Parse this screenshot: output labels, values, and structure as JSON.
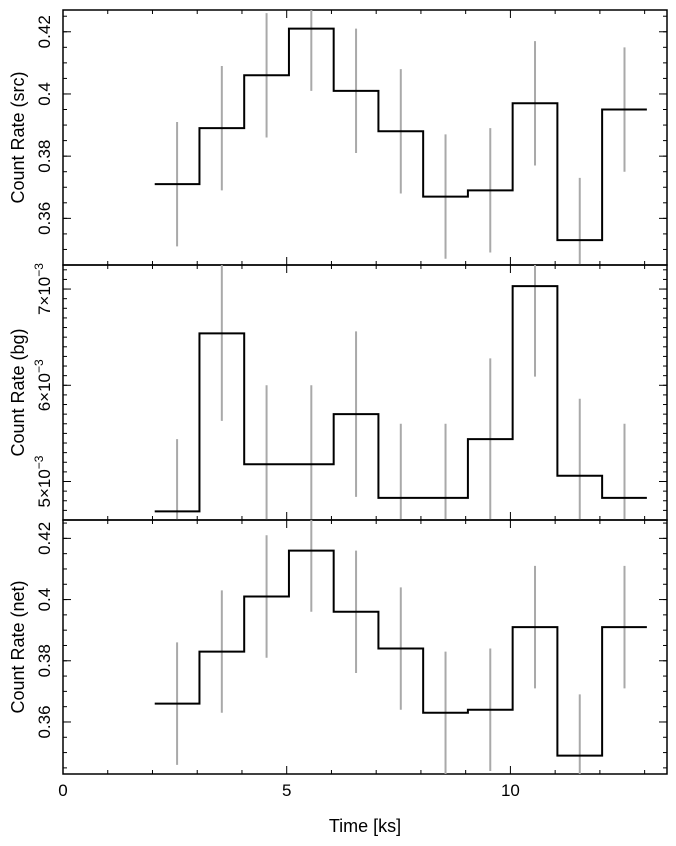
{
  "chart_data": [
    {
      "type": "line",
      "ylabel": "Count Rate (src)",
      "xlim": [
        0,
        13.5
      ],
      "ylim": [
        0.345,
        0.427
      ],
      "xticks": [
        0,
        5,
        10
      ],
      "yticks": [
        0.36,
        0.38,
        0.4,
        0.42
      ],
      "ytick_labels": [
        "0.36",
        "0.38",
        "0.4",
        "0.42"
      ],
      "bin_edges": [
        2.05,
        3.05,
        4.05,
        5.05,
        6.05,
        7.05,
        8.05,
        9.05,
        10.05,
        11.05,
        12.05,
        13.05
      ],
      "series": [
        {
          "x": [
            2.55,
            3.55,
            4.55,
            5.55,
            6.55,
            7.55,
            8.55,
            9.55,
            10.55,
            11.55,
            12.55
          ],
          "values": [
            0.371,
            0.389,
            0.406,
            0.421,
            0.401,
            0.388,
            0.367,
            0.369,
            0.397,
            0.353,
            0.395
          ],
          "error": [
            0.02,
            0.02,
            0.02,
            0.02,
            0.02,
            0.02,
            0.02,
            0.02,
            0.02,
            0.02,
            0.02
          ]
        }
      ]
    },
    {
      "type": "line",
      "ylabel": "Count Rate (bg)",
      "xlim": [
        0,
        13.5
      ],
      "ylim": [
        0.0046,
        0.00725
      ],
      "xticks": [
        0,
        5,
        10
      ],
      "yticks": [
        0.005,
        0.006,
        0.007
      ],
      "ytick_labels": [
        [
          "5×10",
          "−3"
        ],
        [
          "6×10",
          "−3"
        ],
        [
          "7×10",
          "−3"
        ]
      ],
      "bin_edges": [
        2.05,
        3.05,
        4.05,
        5.05,
        6.05,
        7.05,
        8.05,
        9.05,
        10.05,
        11.05,
        12.05,
        13.05
      ],
      "series": [
        {
          "x": [
            2.55,
            3.55,
            4.55,
            5.55,
            6.55,
            7.55,
            8.55,
            9.55,
            10.55,
            11.55,
            12.55
          ],
          "values": [
            0.00469,
            0.00654,
            0.00518,
            0.00518,
            0.0057,
            0.00483,
            0.00483,
            0.00544,
            0.00703,
            0.00506,
            0.00483
          ],
          "error": [
            0.00075,
            0.00091,
            0.00082,
            0.00082,
            0.00086,
            0.00077,
            0.00077,
            0.00084,
            0.00094,
            0.0008,
            0.00077
          ]
        }
      ]
    },
    {
      "type": "line",
      "ylabel": "Count Rate (net)",
      "xlabel": "Time [ks]",
      "xlim": [
        0,
        13.5
      ],
      "ylim": [
        0.343,
        0.426
      ],
      "xticks": [
        0,
        5,
        10
      ],
      "xtick_labels": [
        "0",
        "5",
        "10"
      ],
      "yticks": [
        0.36,
        0.38,
        0.4,
        0.42
      ],
      "ytick_labels": [
        "0.36",
        "0.38",
        "0.4",
        "0.42"
      ],
      "bin_edges": [
        2.05,
        3.05,
        4.05,
        5.05,
        6.05,
        7.05,
        8.05,
        9.05,
        10.05,
        11.05,
        12.05,
        13.05
      ],
      "series": [
        {
          "x": [
            2.55,
            3.55,
            4.55,
            5.55,
            6.55,
            7.55,
            8.55,
            9.55,
            10.55,
            11.55,
            12.55
          ],
          "values": [
            0.366,
            0.383,
            0.401,
            0.416,
            0.396,
            0.384,
            0.363,
            0.364,
            0.391,
            0.349,
            0.391
          ],
          "error": [
            0.02,
            0.02,
            0.02,
            0.02,
            0.02,
            0.02,
            0.02,
            0.02,
            0.02,
            0.02,
            0.02
          ]
        }
      ]
    }
  ]
}
